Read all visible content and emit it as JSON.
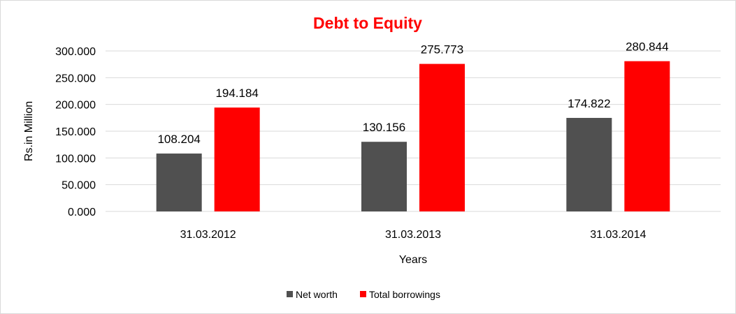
{
  "chart_data": {
    "type": "bar",
    "title": "Debt to Equity",
    "xlabel": "Years",
    "ylabel": "Rs.in Million",
    "categories": [
      "31.03.2012",
      "31.03.2013",
      "31.03.2014"
    ],
    "series": [
      {
        "name": "Net worth",
        "values": [
          108.204,
          130.156,
          174.822
        ],
        "color": "#505050"
      },
      {
        "name": "Total borrowings",
        "values": [
          194.184,
          275.773,
          280.844
        ],
        "color": "#ff0000"
      }
    ],
    "ylim": [
      0,
      300
    ],
    "yticks": [
      "0.000",
      "50.000",
      "100.000",
      "150.000",
      "200.000",
      "250.000",
      "300.000"
    ],
    "data_labels": [
      [
        "108.204",
        "130.156",
        "174.822"
      ],
      [
        "194.184",
        "275.773",
        "280.844"
      ]
    ],
    "grid": true,
    "legend_position": "bottom",
    "title_color": "#ff0000"
  }
}
